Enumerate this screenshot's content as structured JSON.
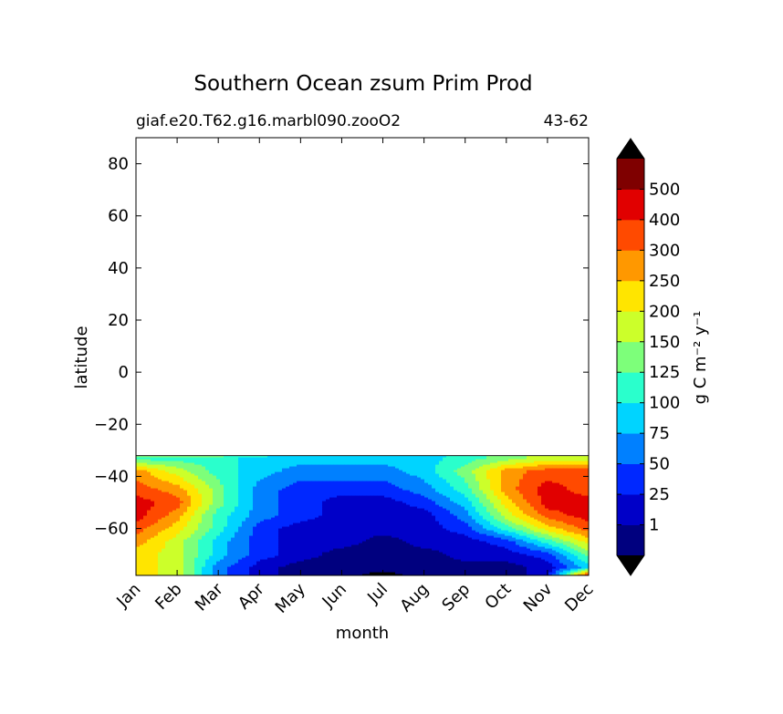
{
  "chart_data": {
    "type": "contourf",
    "title": "Southern Ocean zsum Prim Prod",
    "subtitle_left": "giaf.e20.T62.g16.marbl090.zooO2",
    "subtitle_right": "43-62",
    "xlabel": "month",
    "ylabel": "latitude",
    "xcategories": [
      "Jan",
      "Feb",
      "Mar",
      "Apr",
      "May",
      "Jun",
      "Jul",
      "Aug",
      "Sep",
      "Oct",
      "Nov",
      "Dec"
    ],
    "ylim": [
      -78,
      90
    ],
    "yticks": [
      -60,
      -40,
      -20,
      0,
      20,
      40,
      60,
      80
    ],
    "ytick_labels": [
      "−60",
      "−40",
      "−20",
      "0",
      "20",
      "40",
      "60",
      "80"
    ],
    "data_extent_lat": [
      -78,
      -32
    ],
    "colorbar": {
      "label": "g C m⁻² y⁻¹",
      "levels": [
        1,
        25,
        50,
        75,
        100,
        125,
        150,
        200,
        250,
        300,
        400,
        500
      ],
      "tick_labels": [
        "1",
        "25",
        "50",
        "75",
        "100",
        "125",
        "150",
        "200",
        "250",
        "300",
        "400",
        "500"
      ],
      "colors": [
        "#00007f",
        "#0000c8",
        "#0028ff",
        "#0080ff",
        "#00d4ff",
        "#2affcc",
        "#7dff7a",
        "#ccff2a",
        "#ffe500",
        "#ff9800",
        "#ff4a00",
        "#e10000",
        "#7f0000"
      ],
      "under_color": "#000000",
      "over_color": "#000000"
    },
    "field_months": [
      0,
      1,
      2,
      3,
      4,
      5,
      6,
      7,
      8,
      9,
      10,
      11
    ],
    "field_lats": [
      -32,
      -33,
      -38,
      -45,
      -50,
      -55,
      -60,
      -65,
      -70,
      -75,
      -78
    ],
    "field_levels": [
      [
        6,
        6,
        6,
        5,
        4,
        4,
        4,
        4,
        5,
        6,
        7,
        7
      ],
      [
        5,
        5,
        5,
        4,
        4,
        4,
        4,
        4,
        5,
        6,
        7,
        7
      ],
      [
        9,
        7,
        5,
        4,
        3,
        3,
        3,
        4,
        6,
        9,
        10,
        10
      ],
      [
        10,
        9,
        6,
        3,
        2,
        2,
        2,
        3,
        5,
        9,
        11,
        10
      ],
      [
        11,
        10,
        6,
        3,
        2,
        1,
        1,
        2,
        4,
        8,
        11,
        11
      ],
      [
        11,
        9,
        5,
        3,
        2,
        1,
        1,
        1,
        3,
        7,
        10,
        11
      ],
      [
        10,
        8,
        5,
        2,
        1,
        1,
        1,
        1,
        2,
        5,
        8,
        10
      ],
      [
        9,
        7,
        4,
        2,
        1,
        1,
        0,
        1,
        1,
        2,
        5,
        8
      ],
      [
        8,
        7,
        4,
        2,
        1,
        0,
        0,
        0,
        1,
        1,
        2,
        6
      ],
      [
        8,
        7,
        3,
        1,
        0,
        0,
        0,
        0,
        0,
        0,
        1,
        4
      ],
      [
        8,
        7,
        3,
        1,
        0,
        0,
        -1,
        0,
        0,
        0,
        1,
        11
      ]
    ]
  }
}
